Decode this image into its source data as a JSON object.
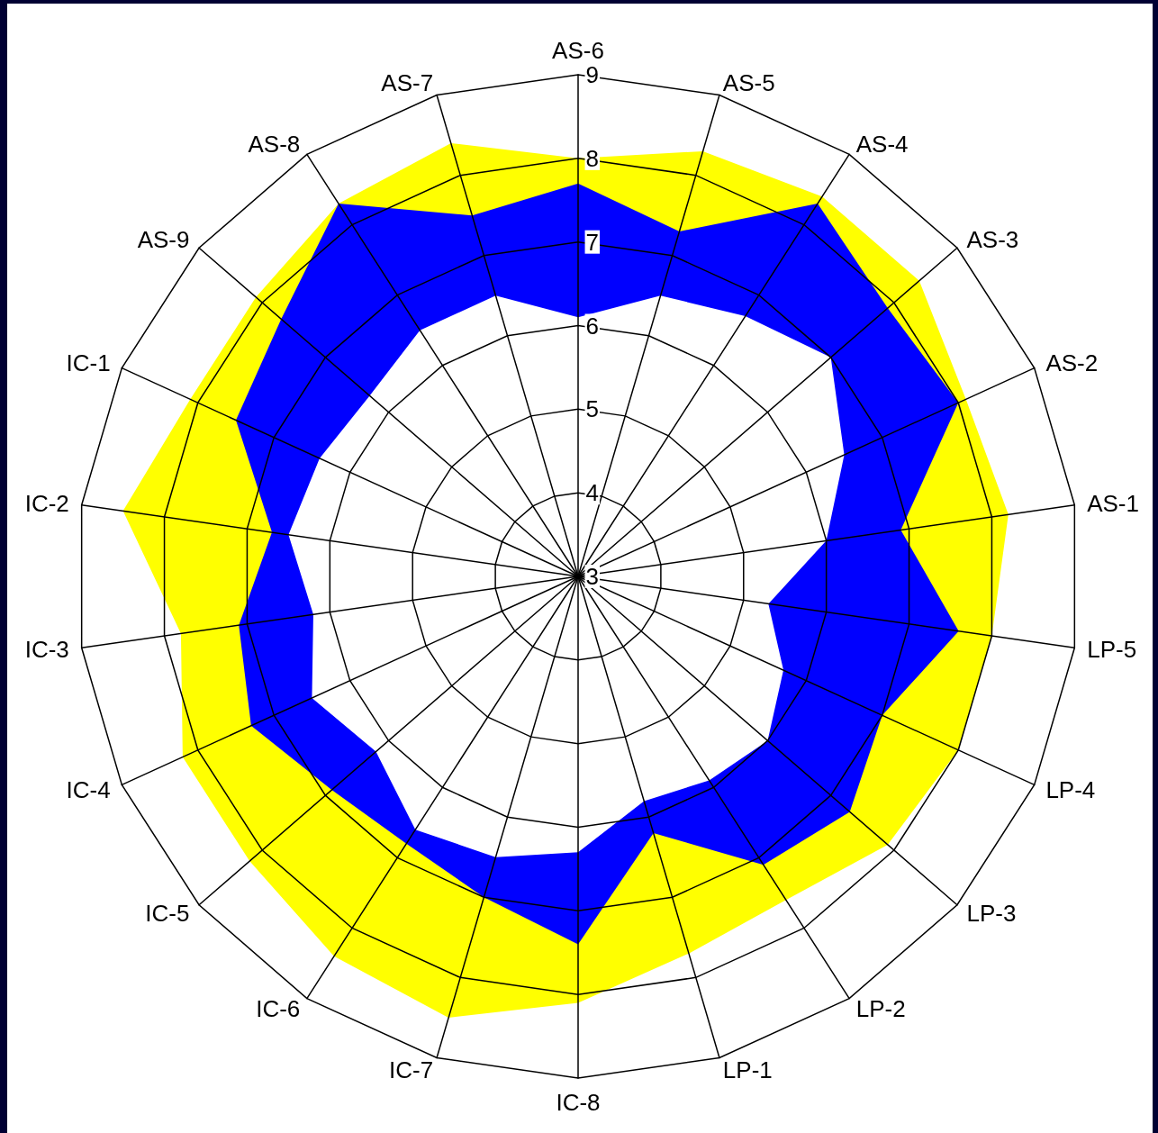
{
  "chart_data": {
    "type": "radar",
    "categories": [
      "AS-6",
      "AS-5",
      "AS-4",
      "AS-3",
      "AS-2",
      "AS-1",
      "LP-5",
      "LP-4",
      "LP-3",
      "LP-2",
      "LP-1",
      "IC-8",
      "IC-7",
      "IC-6",
      "IC-5",
      "IC-4",
      "IC-3",
      "IC-2",
      "IC-1",
      "AS-9",
      "AS-8",
      "AS-7"
    ],
    "series": [
      {
        "color": "#ffff00",
        "values": [
          8.0,
          8.3,
          8.4,
          8.4,
          8.1,
          8.2,
          8.0,
          8.0,
          7.9,
          7.6,
          7.7,
          8.1,
          8.5,
          8.4,
          8.2,
          8.2,
          7.8,
          8.5,
          8.1,
          8.1,
          8.3,
          8.4
        ]
      },
      {
        "color": "#0000ff",
        "values": [
          7.7,
          7.3,
          8.3,
          7.9,
          8.0,
          6.9,
          7.6,
          7.0,
          7.3,
          7.1,
          6.2,
          7.4,
          7.0,
          6.8,
          6.9,
          7.3,
          7.1,
          6.7,
          7.5,
          7.7,
          8.3,
          7.5
        ]
      },
      {
        "color": "#ffffff",
        "values": [
          6.1,
          6.5,
          6.7,
          7.0,
          6.5,
          6.0,
          5.3,
          5.7,
          6.0,
          5.9,
          5.8,
          6.3,
          6.5,
          6.6,
          6.2,
          6.5,
          6.2,
          6.5,
          6.4,
          6.3,
          6.5,
          6.5
        ]
      }
    ],
    "ylim": [
      3,
      9
    ],
    "yticks": [
      3,
      4,
      5,
      6,
      7,
      8,
      9
    ],
    "grid": true,
    "marker": "none"
  }
}
